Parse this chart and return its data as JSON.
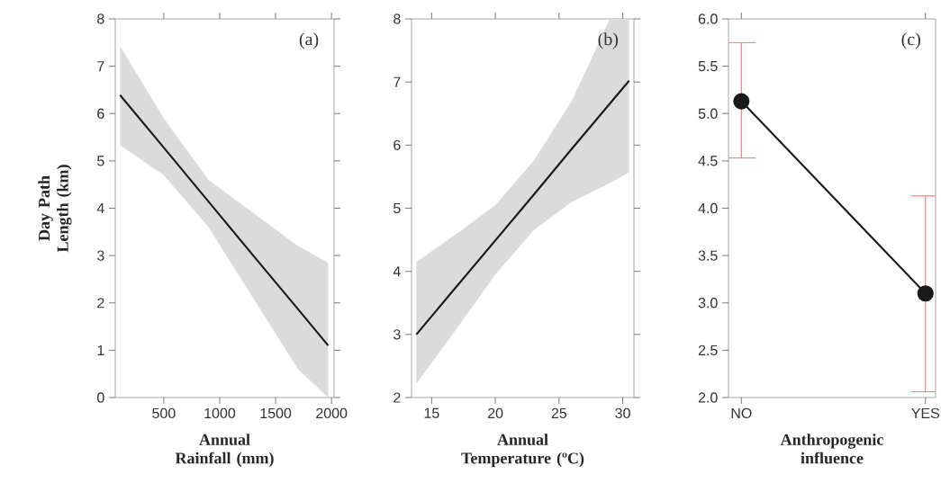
{
  "chart_data": [
    {
      "type": "line",
      "xlabel": "Annual Rainfall (mm)",
      "ylabel": "Day Path Length (km)",
      "annotations": [
        "(a)"
      ],
      "x": [
        109,
        500,
        900,
        1300,
        1700,
        1970
      ],
      "series": [
        {
          "color": "#1a1a1a",
          "values": [
            6.39,
            5.28,
            4.14,
            3.0,
            1.87,
            1.1
          ],
          "lower": [
            5.33,
            4.7,
            3.6,
            2.1,
            0.6,
            0.0
          ],
          "upper": [
            7.42,
            5.9,
            4.6,
            3.9,
            3.2,
            2.85
          ]
        }
      ],
      "xlim": [
        66,
        2023
      ],
      "ylim": [
        0,
        8
      ],
      "xticks": [
        500,
        1000,
        1500,
        2000
      ],
      "yticks": [
        0,
        1,
        2,
        3,
        4,
        5,
        6,
        7,
        8
      ]
    },
    {
      "type": "line",
      "xlabel": "Annual Temperature (ºC)",
      "annotations": [
        "(b)"
      ],
      "x": [
        13.8,
        17,
        20,
        23,
        26,
        29,
        30.5
      ],
      "series": [
        {
          "color": "#1a1a1a",
          "values": [
            3.0,
            3.77,
            4.49,
            5.21,
            5.94,
            6.66,
            7.02
          ],
          "lower": [
            2.22,
            3.1,
            3.95,
            4.65,
            5.1,
            5.4,
            5.57
          ],
          "upper": [
            4.15,
            4.6,
            5.05,
            5.75,
            6.7,
            8.0,
            8.0
          ]
        }
      ],
      "xlim": [
        13.42,
        30.88
      ],
      "ylim": [
        2,
        8
      ],
      "xticks": [
        15,
        20,
        25,
        30
      ],
      "yticks": [
        2,
        3,
        4,
        5,
        6,
        7,
        8
      ]
    },
    {
      "type": "line",
      "xlabel": "Anthropogenic influence",
      "annotations": [
        "(c)"
      ],
      "marker": "circle",
      "categories": [
        "NO",
        "YES"
      ],
      "series": [
        {
          "color": "#1a1a1a",
          "values": [
            5.13,
            3.1
          ],
          "errors": [
            [
              4.53,
              5.75
            ],
            [
              2.06,
              4.13
            ]
          ]
        }
      ],
      "ylim": [
        2,
        6
      ],
      "yticks": [
        {
          "value": 2,
          "label": "2.0"
        },
        {
          "value": 2.5,
          "label": "2.5"
        },
        {
          "value": 3,
          "label": "3.0"
        },
        {
          "value": 3.5,
          "label": "3.5"
        },
        {
          "value": 4,
          "label": "4.0"
        },
        {
          "value": 4.5,
          "label": "4.5"
        },
        {
          "value": 5,
          "label": "5.0"
        },
        {
          "value": 5.5,
          "label": "5.5"
        },
        {
          "value": 6,
          "label": "6.0"
        }
      ]
    }
  ]
}
